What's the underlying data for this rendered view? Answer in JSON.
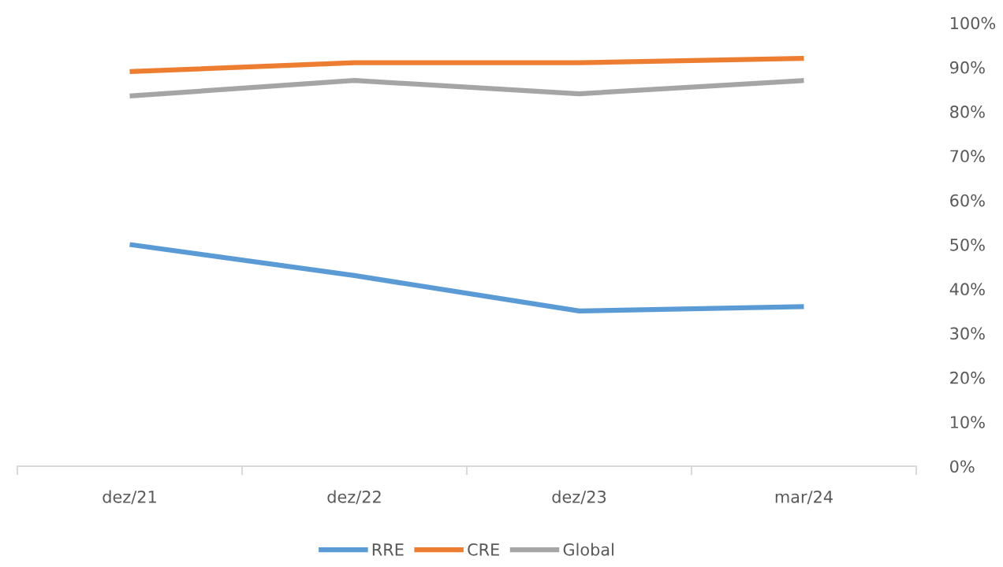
{
  "chart_data": {
    "type": "line",
    "categories": [
      "dez/21",
      "dez/22",
      "dez/23",
      "mar/24"
    ],
    "series": [
      {
        "name": "RRE",
        "color": "#5b9bd5",
        "values": [
          50,
          43,
          35,
          36
        ]
      },
      {
        "name": "CRE",
        "color": "#ed7d31",
        "values": [
          89,
          91,
          91,
          92
        ]
      },
      {
        "name": "Global",
        "color": "#a5a5a5",
        "values": [
          83.5,
          87,
          84,
          87
        ]
      }
    ],
    "ylim": [
      0,
      100
    ],
    "yticks": [
      {
        "value": 0,
        "label": "0%"
      },
      {
        "value": 10,
        "label": "10%"
      },
      {
        "value": 20,
        "label": "20%"
      },
      {
        "value": 30,
        "label": "30%"
      },
      {
        "value": 40,
        "label": "40%"
      },
      {
        "value": 50,
        "label": "50%"
      },
      {
        "value": 60,
        "label": "60%"
      },
      {
        "value": 70,
        "label": "70%"
      },
      {
        "value": 80,
        "label": "80%"
      },
      {
        "value": 90,
        "label": "90%"
      },
      {
        "value": 100,
        "label": "100%"
      }
    ],
    "grid": false,
    "legend": "bottom",
    "marker": "none",
    "line_style": "solid"
  }
}
